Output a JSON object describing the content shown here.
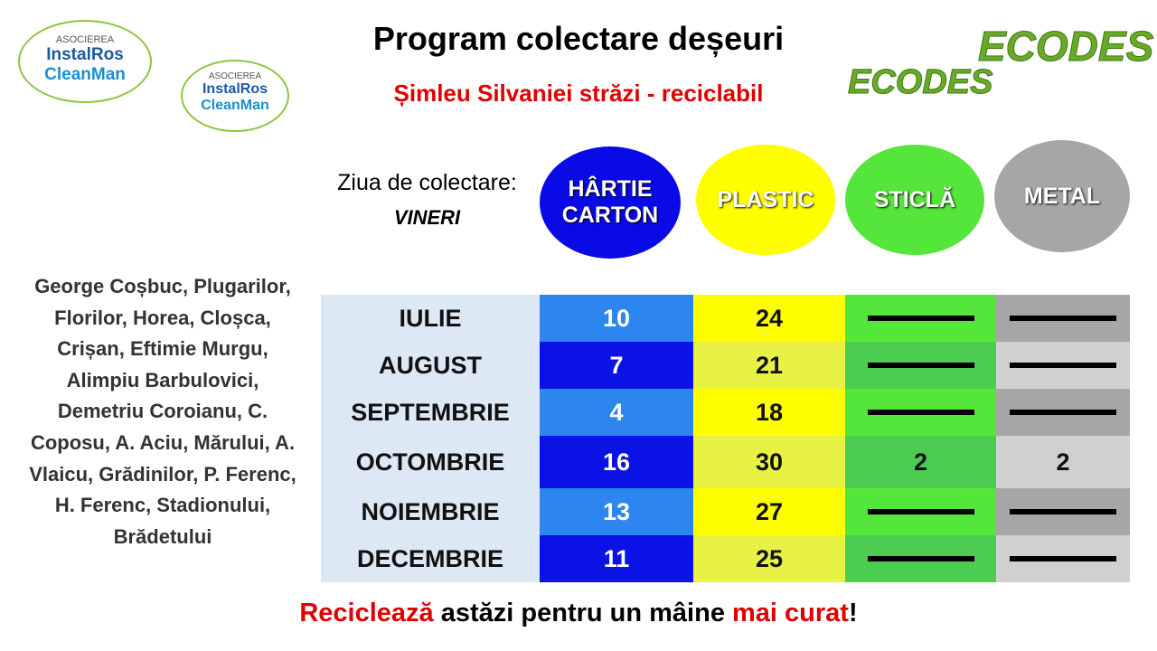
{
  "logos_left": [
    {
      "top": "ASOCIEREA",
      "brand1": "InstalRos",
      "brand2": "CleanMan"
    },
    {
      "top": "ASOCIEREA",
      "brand1": "InstalRos",
      "brand2": "CleanMan"
    }
  ],
  "logos_right": [
    "ECODES",
    "ECODES"
  ],
  "title": "Program colectare deșeuri",
  "subtitle": "Șimleu Silvaniei străzi - reciclabil",
  "collection_day": {
    "label": "Ziua de colectare:",
    "day": "VINERI"
  },
  "streets": "George Coșbuc, Plugarilor, Florilor, Horea, Cloșca, Crișan, Eftimie Murgu, Alimpiu Barbulovici, Demetriu Coroianu, C. Coposu, A. Aciu, Mărului, A. Vlaicu, Grădinilor, P. Ferenc, H. Ferenc, Stadionului, Brădetului",
  "table": {
    "columns": [
      {
        "label": "HÂRTIE CARTON",
        "color": "#0a0ae6"
      },
      {
        "label": "PLASTIC",
        "color": "#ffff00"
      },
      {
        "label": "STICLĂ",
        "color": "#55e63c"
      },
      {
        "label": "METAL",
        "color": "#a6a6a6"
      }
    ],
    "rows": [
      {
        "month": "IULIE",
        "values": [
          10,
          24,
          null,
          null
        ]
      },
      {
        "month": "AUGUST",
        "values": [
          7,
          21,
          null,
          null
        ]
      },
      {
        "month": "SEPTEMBRIE",
        "values": [
          4,
          18,
          null,
          null
        ]
      },
      {
        "month": "OCTOMBRIE",
        "values": [
          16,
          30,
          2,
          2
        ]
      },
      {
        "month": "NOIEMBRIE",
        "values": [
          13,
          27,
          null,
          null
        ]
      },
      {
        "month": "DECEMBRIE",
        "values": [
          11,
          25,
          null,
          null
        ]
      }
    ]
  },
  "footer": [
    {
      "text": "Reciclează",
      "highlight": true
    },
    {
      "text": " astăzi pentru un mâine ",
      "highlight": false
    },
    {
      "text": "mai curat",
      "highlight": true
    },
    {
      "text": "!",
      "highlight": false
    }
  ]
}
